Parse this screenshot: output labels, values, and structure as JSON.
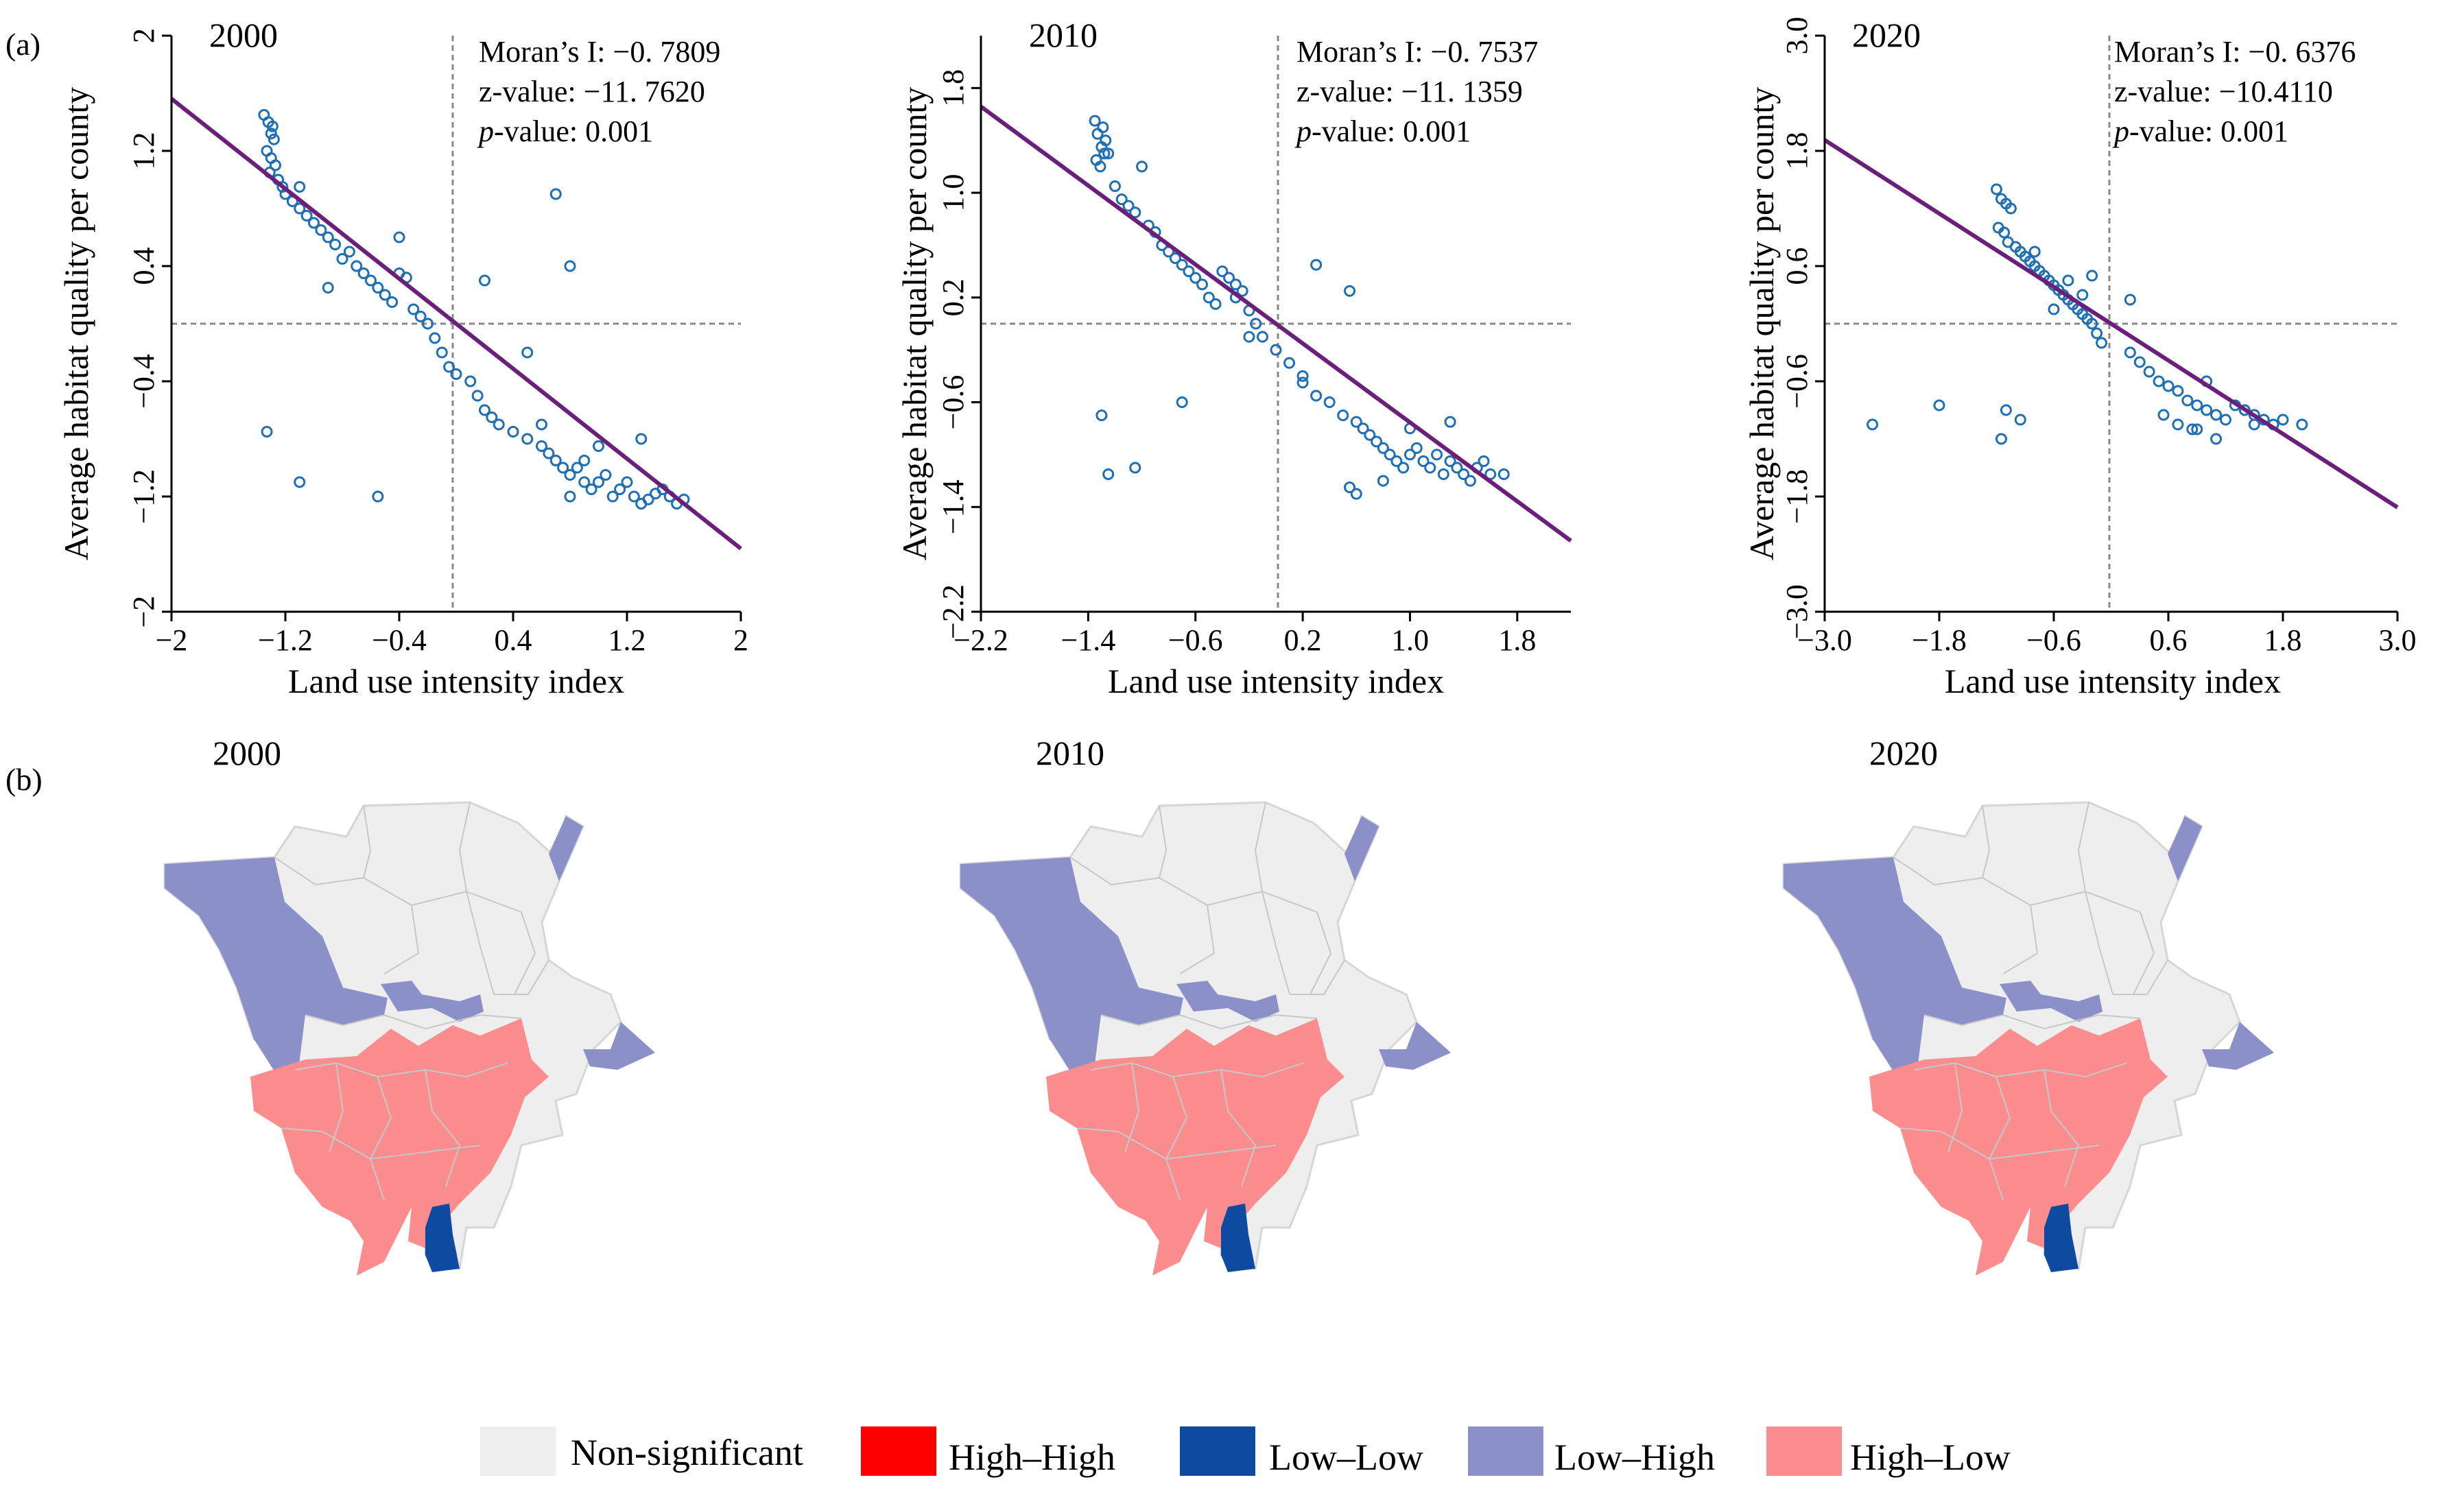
{
  "panel_a_label": "(a)",
  "panel_b_label": "(b)",
  "colors": {
    "points": "#1f6fb5",
    "trend": "#6a1f7a",
    "non_significant": "#eeeeee",
    "high_high": "#ff0000",
    "low_low": "#0d4aa0",
    "low_high": "#8b90c9",
    "high_low": "#fb8d8f"
  },
  "chart_data": [
    {
      "type": "scatter",
      "title": "2000",
      "xlabel": "Land use intensity index",
      "ylabel": "Average habitat quality per county",
      "xlim": [
        -2,
        2
      ],
      "ylim": [
        -2,
        2
      ],
      "xticks": [
        "-2",
        "-1.2",
        "-0.4",
        "0.4",
        "1.2",
        "2"
      ],
      "yticks": [
        "-2",
        "-1.2",
        "-0.4",
        "0.4",
        "1.2",
        "2"
      ],
      "stats": {
        "moran": "Moran’s I:  −0. 7809",
        "z": "z-value:  −11. 7620",
        "p_label": "p",
        "p_rest": "-value: 0.001"
      },
      "trend_line": {
        "slope": -0.7809,
        "x_range": [
          -2,
          2
        ]
      },
      "x": [
        -1.35,
        -1.32,
        -1.3,
        -1.28,
        -1.33,
        -1.3,
        -1.27,
        -1.31,
        -1.29,
        -1.25,
        -1.22,
        -1.2,
        -1.15,
        -1.1,
        -1.05,
        -1.0,
        -0.95,
        -0.9,
        -0.85,
        -0.8,
        -0.75,
        -0.7,
        -0.65,
        -0.6,
        -0.55,
        -0.5,
        -0.45,
        -0.4,
        -0.35,
        -0.3,
        -0.25,
        -0.2,
        -0.15,
        -0.1,
        -0.05,
        0.0,
        0.1,
        0.15,
        0.2,
        0.25,
        0.3,
        0.4,
        0.5,
        0.6,
        0.65,
        0.7,
        0.75,
        0.8,
        0.85,
        0.9,
        0.95,
        1.0,
        1.05,
        1.1,
        1.15,
        1.2,
        1.25,
        1.3,
        1.35,
        1.4,
        1.45,
        1.5,
        1.55,
        1.6,
        1.3,
        1.0,
        0.9,
        0.8,
        0.6,
        -1.33,
        -1.1,
        -0.55,
        0.7,
        0.8,
        -1.1,
        -0.9,
        -0.4,
        0.2,
        0.5
      ],
      "y": [
        1.45,
        1.4,
        1.32,
        1.28,
        1.2,
        1.15,
        1.1,
        1.05,
        1.37,
        1.0,
        0.95,
        0.9,
        0.85,
        0.8,
        0.75,
        0.7,
        0.65,
        0.6,
        0.55,
        0.45,
        0.5,
        0.4,
        0.35,
        0.3,
        0.25,
        0.2,
        0.15,
        0.35,
        0.32,
        0.1,
        0.05,
        0.0,
        -0.1,
        -0.2,
        -0.3,
        -0.35,
        -0.4,
        -0.5,
        -0.6,
        -0.65,
        -0.7,
        -0.75,
        -0.8,
        -0.85,
        -0.9,
        -0.95,
        -1.0,
        -1.05,
        -1.0,
        -1.1,
        -1.15,
        -1.1,
        -1.05,
        -1.2,
        -1.15,
        -1.1,
        -1.2,
        -1.25,
        -1.22,
        -1.18,
        -1.15,
        -1.2,
        -1.25,
        -1.22,
        -0.8,
        -0.85,
        -0.95,
        -1.2,
        -0.7,
        -0.75,
        -1.1,
        -1.2,
        0.9,
        0.4,
        0.95,
        0.25,
        0.6,
        0.3,
        -0.2
      ]
    },
    {
      "type": "scatter",
      "title": "2010",
      "xlabel": "Land use intensity index",
      "ylabel": "Average habitat quality per county",
      "xlim": [
        -2.2,
        2.2
      ],
      "ylim": [
        -2.2,
        2.2
      ],
      "xticks": [
        "-2.2",
        "-1.4",
        "-0.6",
        "0.2",
        "1.0",
        "1.8"
      ],
      "yticks": [
        "-2.2",
        "-1.4",
        "-0.6",
        "0.2",
        "1.0",
        "1.8"
      ],
      "stats": {
        "moran": "Moran’s I:  −0. 7537",
        "z": "z-value:  −11. 1359",
        "p_label": "p",
        "p_rest": "-value: 0.001"
      },
      "trend_line": {
        "slope": -0.7537,
        "x_range": [
          -2.2,
          2.2
        ]
      },
      "x": [
        -1.35,
        -1.33,
        -1.3,
        -1.28,
        -1.34,
        -1.31,
        -1.29,
        -1.27,
        -1.25,
        -1.2,
        -1.15,
        -1.1,
        -1.05,
        -1.0,
        -0.95,
        -0.9,
        -0.85,
        -0.8,
        -0.75,
        -0.7,
        -0.65,
        -0.6,
        -0.55,
        -0.5,
        -0.45,
        -0.4,
        -0.35,
        -0.3,
        -0.25,
        -0.2,
        -0.15,
        -0.1,
        0.0,
        0.1,
        0.2,
        0.3,
        0.4,
        0.5,
        0.6,
        0.65,
        0.7,
        0.75,
        0.8,
        0.85,
        0.9,
        0.95,
        1.0,
        1.05,
        1.1,
        1.15,
        1.2,
        1.25,
        1.3,
        1.35,
        1.4,
        1.45,
        1.5,
        1.55,
        1.6,
        1.7,
        0.55,
        0.6,
        1.0,
        1.3,
        0.8,
        -1.3,
        -1.25,
        -1.05,
        -0.7,
        0.3,
        0.55,
        0.2,
        -0.3,
        -0.2
      ],
      "y": [
        1.55,
        1.45,
        1.35,
        1.3,
        1.25,
        1.2,
        1.5,
        1.4,
        1.3,
        1.05,
        0.95,
        0.9,
        0.85,
        1.2,
        0.75,
        0.7,
        0.6,
        0.55,
        0.5,
        0.45,
        0.4,
        0.35,
        0.3,
        0.2,
        0.15,
        0.4,
        0.35,
        0.3,
        0.25,
        0.1,
        0.0,
        -0.1,
        -0.2,
        -0.3,
        -0.45,
        -0.55,
        -0.6,
        -0.7,
        -0.75,
        -0.8,
        -0.85,
        -0.9,
        -0.95,
        -1.0,
        -1.05,
        -1.1,
        -1.0,
        -0.95,
        -1.05,
        -1.1,
        -1.0,
        -1.15,
        -1.05,
        -1.1,
        -1.15,
        -1.2,
        -1.1,
        -1.05,
        -1.15,
        -1.15,
        -1.25,
        -1.3,
        -0.8,
        -0.75,
        -1.2,
        -0.7,
        -1.15,
        -1.1,
        -0.6,
        0.45,
        0.25,
        -0.4,
        0.2,
        -0.1
      ]
    },
    {
      "type": "scatter",
      "title": "2020",
      "xlabel": "Land use intensity index",
      "ylabel": "Average habitat quality per county",
      "xlim": [
        -3.0,
        3.0
      ],
      "ylim": [
        -3.0,
        3.0
      ],
      "xticks": [
        "-3.0",
        "-1.8",
        "-0.6",
        "0.6",
        "1.8",
        "3.0"
      ],
      "yticks": [
        "-3.0",
        "-1.8",
        "-0.6",
        "0.6",
        "1.8",
        "3.0"
      ],
      "stats": {
        "moran": "Moran’s I:  −0. 6376",
        "z": "z-value:  −10.4110",
        "p_label": "p",
        "p_rest": "-value: 0.001"
      },
      "trend_line": {
        "slope": -0.6376,
        "x_range": [
          -3.0,
          3.0
        ]
      },
      "x": [
        -1.2,
        -1.15,
        -1.1,
        -1.05,
        -1.18,
        -1.12,
        -1.08,
        -1.0,
        -0.95,
        -0.9,
        -0.85,
        -0.8,
        -0.75,
        -0.7,
        -0.65,
        -0.6,
        -0.55,
        -0.5,
        -0.45,
        -0.4,
        -0.35,
        -0.3,
        -0.25,
        -0.2,
        -0.15,
        -0.1,
        0.2,
        0.3,
        0.4,
        0.5,
        0.6,
        0.7,
        0.8,
        0.9,
        1.0,
        1.1,
        1.2,
        1.3,
        1.4,
        1.5,
        1.6,
        1.7,
        1.8,
        2.0,
        0.9,
        1.1,
        1.5,
        1.0,
        0.55,
        0.7,
        0.85,
        0.2,
        -2.5,
        -1.8,
        -1.1,
        -1.15,
        -0.95,
        -0.3,
        -0.6,
        -0.8,
        -0.45,
        -0.2
      ],
      "y": [
        1.4,
        1.3,
        1.25,
        1.2,
        1.0,
        0.95,
        0.85,
        0.8,
        0.75,
        0.7,
        0.65,
        0.6,
        0.55,
        0.5,
        0.45,
        0.4,
        0.35,
        0.3,
        0.25,
        0.2,
        0.15,
        0.1,
        0.05,
        0.0,
        -0.1,
        -0.2,
        -0.3,
        -0.4,
        -0.5,
        -0.6,
        -0.65,
        -0.7,
        -0.8,
        -0.85,
        -0.9,
        -0.95,
        -1.0,
        -0.85,
        -0.9,
        -0.95,
        -1.0,
        -1.05,
        -1.0,
        -1.05,
        -1.1,
        -1.2,
        -1.05,
        -0.6,
        -0.95,
        -1.05,
        -1.1,
        0.25,
        -1.05,
        -0.85,
        -0.9,
        -1.2,
        -1.0,
        0.3,
        0.15,
        0.75,
        0.45,
        0.5
      ]
    }
  ],
  "maps": [
    {
      "year": "2000"
    },
    {
      "year": "2010"
    },
    {
      "year": "2020"
    }
  ],
  "legend": [
    {
      "label": "Non-significant",
      "color": "#eeeeee"
    },
    {
      "label": "High–High",
      "color": "#ff0000"
    },
    {
      "label": "Low–Low",
      "color": "#0d4aa0"
    },
    {
      "label": "Low–High",
      "color": "#8b90c9"
    },
    {
      "label": "High–Low",
      "color": "#fb8d8f"
    }
  ]
}
